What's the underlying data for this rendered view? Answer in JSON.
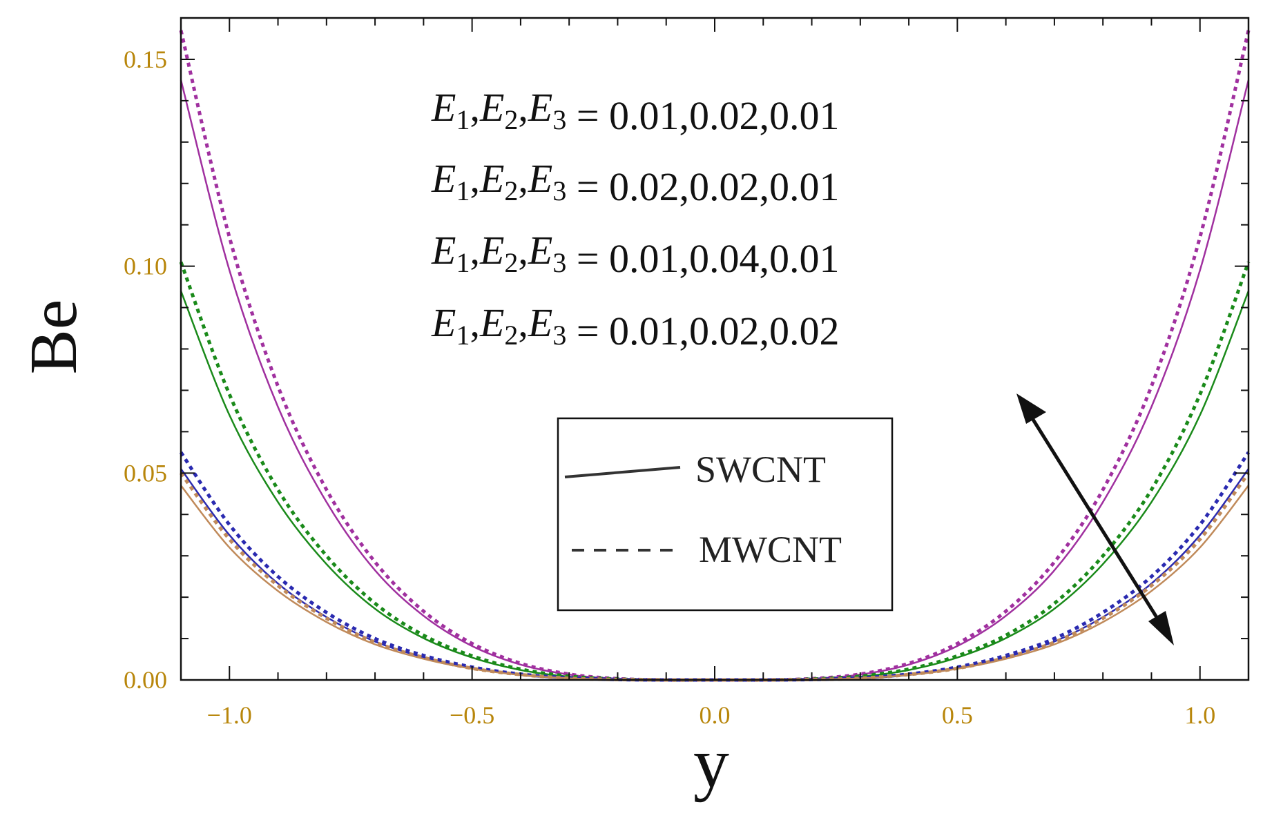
{
  "chart_data": {
    "type": "line",
    "title": "",
    "xlabel": "y",
    "ylabel": "Be",
    "xlim": [
      -1.1,
      1.1
    ],
    "ylim": [
      0,
      0.16
    ],
    "x_ticks": [
      -1.0,
      -0.5,
      0.0,
      0.5,
      1.0
    ],
    "x_tick_labels": [
      "−1.0",
      "−0.5",
      "0.0",
      "0.5",
      "1.0"
    ],
    "y_ticks": [
      0,
      0.05,
      0.1,
      0.15
    ],
    "y_tick_labels": [
      "0.00",
      "0.05",
      "0.10",
      "0.15"
    ],
    "grid": false,
    "annotations": [
      {
        "prefix": "E",
        "text": "E₁,E₂,E₃ = 0.01,0.02,0.01",
        "values": "0.01,0.02,0.01",
        "color": "#a0309f"
      },
      {
        "prefix": "E",
        "text": "E₁,E₂,E₃ = 0.02,0.02,0.01",
        "values": "0.02,0.02,0.01",
        "color": "#1a8a1a"
      },
      {
        "prefix": "E",
        "text": "E₁,E₂,E₃ = 0.01,0.04,0.01",
        "values": "0.01,0.04,0.01",
        "color": "#2a2ab0"
      },
      {
        "prefix": "E",
        "text": "E₁,E₂,E₃ = 0.01,0.02,0.02",
        "values": "0.01,0.02,0.02",
        "color": "#c08a5a"
      }
    ],
    "legend": {
      "placement": "center-bottom",
      "entries": [
        {
          "name": "SWCNT",
          "style": "solid"
        },
        {
          "name": "MWCNT",
          "style": "dashed"
        }
      ]
    },
    "series": [
      {
        "group": "0.01,0.02,0.01",
        "style": "solid",
        "color": "#a0309f",
        "x": [
          -1.1,
          -1.0,
          -0.9,
          -0.8,
          -0.7,
          -0.6,
          -0.5,
          -0.4,
          -0.3,
          -0.2,
          -0.1,
          0.0,
          0.1,
          0.2,
          0.3,
          0.4,
          0.5,
          0.6,
          0.7,
          0.8,
          0.9,
          1.0,
          1.1
        ],
        "y": [
          0.145,
          0.099,
          0.066,
          0.043,
          0.0265,
          0.0155,
          0.0082,
          0.0037,
          0.0013,
          0.0003,
          0.0,
          0.0,
          0.0,
          0.0003,
          0.0013,
          0.0037,
          0.0082,
          0.0155,
          0.0265,
          0.043,
          0.066,
          0.099,
          0.145
        ]
      },
      {
        "group": "0.01,0.02,0.01",
        "style": "dashed",
        "color": "#a0309f",
        "x": [
          -1.1,
          -1.0,
          -0.9,
          -0.8,
          -0.7,
          -0.6,
          -0.5,
          -0.4,
          -0.3,
          -0.2,
          -0.1,
          0.0,
          0.1,
          0.2,
          0.3,
          0.4,
          0.5,
          0.6,
          0.7,
          0.8,
          0.9,
          1.0,
          1.1
        ],
        "y": [
          0.157,
          0.107,
          0.071,
          0.046,
          0.0285,
          0.0166,
          0.0088,
          0.004,
          0.0014,
          0.0003,
          0.0,
          0.0,
          0.0,
          0.0003,
          0.0014,
          0.004,
          0.0088,
          0.0166,
          0.0285,
          0.046,
          0.071,
          0.107,
          0.157
        ]
      },
      {
        "group": "0.02,0.02,0.01",
        "style": "solid",
        "color": "#1a8a1a",
        "x": [
          -1.1,
          -1.0,
          -0.9,
          -0.8,
          -0.7,
          -0.6,
          -0.5,
          -0.4,
          -0.3,
          -0.2,
          -0.1,
          0.0,
          0.1,
          0.2,
          0.3,
          0.4,
          0.5,
          0.6,
          0.7,
          0.8,
          0.9,
          1.0,
          1.1
        ],
        "y": [
          0.094,
          0.064,
          0.043,
          0.028,
          0.0172,
          0.0101,
          0.0054,
          0.0024,
          0.0008,
          0.0002,
          0.0,
          0.0,
          0.0,
          0.0002,
          0.0008,
          0.0024,
          0.0054,
          0.0101,
          0.0172,
          0.028,
          0.043,
          0.064,
          0.094
        ]
      },
      {
        "group": "0.02,0.02,0.01",
        "style": "dashed",
        "color": "#1a8a1a",
        "x": [
          -1.1,
          -1.0,
          -0.9,
          -0.8,
          -0.7,
          -0.6,
          -0.5,
          -0.4,
          -0.3,
          -0.2,
          -0.1,
          0.0,
          0.1,
          0.2,
          0.3,
          0.4,
          0.5,
          0.6,
          0.7,
          0.8,
          0.9,
          1.0,
          1.1
        ],
        "y": [
          0.101,
          0.069,
          0.046,
          0.03,
          0.0185,
          0.0108,
          0.0058,
          0.0026,
          0.0009,
          0.0002,
          0.0,
          0.0,
          0.0,
          0.0002,
          0.0009,
          0.0026,
          0.0058,
          0.0108,
          0.0185,
          0.03,
          0.046,
          0.069,
          0.101
        ]
      },
      {
        "group": "0.01,0.04,0.01",
        "style": "solid",
        "color": "#2a2ab0",
        "x": [
          -1.1,
          -1.0,
          -0.9,
          -0.8,
          -0.7,
          -0.6,
          -0.5,
          -0.4,
          -0.3,
          -0.2,
          -0.1,
          0.0,
          0.1,
          0.2,
          0.3,
          0.4,
          0.5,
          0.6,
          0.7,
          0.8,
          0.9,
          1.0,
          1.1
        ],
        "y": [
          0.051,
          0.035,
          0.0233,
          0.0152,
          0.0093,
          0.0055,
          0.0029,
          0.0013,
          0.0004,
          0.0001,
          0.0,
          0.0,
          0.0,
          0.0001,
          0.0004,
          0.0013,
          0.0029,
          0.0055,
          0.0093,
          0.0152,
          0.0233,
          0.035,
          0.051
        ]
      },
      {
        "group": "0.01,0.04,0.01",
        "style": "dashed",
        "color": "#2a2ab0",
        "x": [
          -1.1,
          -1.0,
          -0.9,
          -0.8,
          -0.7,
          -0.6,
          -0.5,
          -0.4,
          -0.3,
          -0.2,
          -0.1,
          0.0,
          0.1,
          0.2,
          0.3,
          0.4,
          0.5,
          0.6,
          0.7,
          0.8,
          0.9,
          1.0,
          1.1
        ],
        "y": [
          0.055,
          0.0375,
          0.025,
          0.0163,
          0.01,
          0.0059,
          0.0031,
          0.0014,
          0.0005,
          0.0001,
          0.0,
          0.0,
          0.0,
          0.0001,
          0.0005,
          0.0014,
          0.0031,
          0.0059,
          0.01,
          0.0163,
          0.025,
          0.0375,
          0.055
        ]
      },
      {
        "group": "0.01,0.02,0.02",
        "style": "solid",
        "color": "#c08a5a",
        "x": [
          -1.1,
          -1.0,
          -0.9,
          -0.8,
          -0.7,
          -0.6,
          -0.5,
          -0.4,
          -0.3,
          -0.2,
          -0.1,
          0.0,
          0.1,
          0.2,
          0.3,
          0.4,
          0.5,
          0.6,
          0.7,
          0.8,
          0.9,
          1.0,
          1.1
        ],
        "y": [
          0.047,
          0.032,
          0.0215,
          0.014,
          0.0086,
          0.0051,
          0.0027,
          0.0012,
          0.0004,
          0.0001,
          0.0,
          0.0,
          0.0,
          0.0001,
          0.0004,
          0.0012,
          0.0027,
          0.0051,
          0.0086,
          0.014,
          0.0215,
          0.032,
          0.047
        ]
      },
      {
        "group": "0.01,0.02,0.02",
        "style": "dashed",
        "color": "#c08a5a",
        "x": [
          -1.1,
          -1.0,
          -0.9,
          -0.8,
          -0.7,
          -0.6,
          -0.5,
          -0.4,
          -0.3,
          -0.2,
          -0.1,
          0.0,
          0.1,
          0.2,
          0.3,
          0.4,
          0.5,
          0.6,
          0.7,
          0.8,
          0.9,
          1.0,
          1.1
        ],
        "y": [
          0.05,
          0.034,
          0.0228,
          0.0149,
          0.0091,
          0.0054,
          0.0028,
          0.0013,
          0.0004,
          0.0001,
          0.0,
          0.0,
          0.0,
          0.0001,
          0.0004,
          0.0013,
          0.0028,
          0.0054,
          0.0091,
          0.0149,
          0.0228,
          0.034,
          0.05
        ]
      }
    ]
  }
}
